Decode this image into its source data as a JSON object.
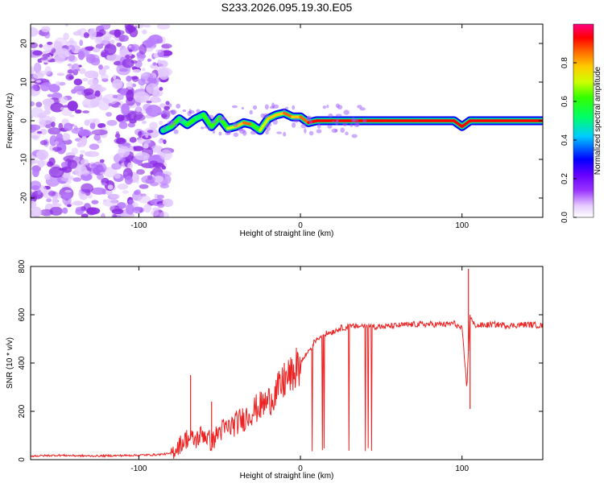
{
  "title": "S233.2026.095.19.30.E05",
  "chart_data": [
    {
      "type": "heatmap",
      "xlabel": "Height of straight line (km)",
      "ylabel": "Frequency (Hz)",
      "xlim": [
        -167,
        150
      ],
      "ylim": [
        -25,
        25
      ],
      "xticks": [
        -100,
        0,
        100
      ],
      "yticks": [
        -20,
        -10,
        0,
        10,
        20
      ],
      "colorbar": {
        "label": "Normalized spectral amplitude",
        "range": [
          0,
          1
        ],
        "ticks": [
          "0.0",
          "0.2",
          "0.4",
          "0.6",
          "0.8"
        ],
        "colors": [
          "#e6ccff",
          "#9933ff",
          "#6600ff",
          "#0000ff",
          "#00ccff",
          "#00ff66",
          "#33ff00",
          "#ccff00",
          "#ffcc00",
          "#ff6600",
          "#ff0000",
          "#ff0080"
        ]
      },
      "noise_region_x": [
        -167,
        -82
      ],
      "ridge": {
        "x": [
          -85,
          -80,
          -75,
          -70,
          -65,
          -60,
          -55,
          -50,
          -45,
          -40,
          -35,
          -30,
          -25,
          -20,
          -15,
          -10,
          -5,
          0,
          5,
          10,
          20,
          30,
          40,
          50,
          60,
          70,
          80,
          90,
          95,
          100,
          105,
          120,
          150
        ],
        "freq": [
          -2.5,
          -1.5,
          0.5,
          -1.0,
          0.5,
          1.5,
          -1.5,
          0.8,
          -2.0,
          -1.5,
          -0.5,
          -1.0,
          -2.5,
          0.5,
          1.5,
          2.0,
          1.0,
          1.0,
          -0.5,
          0.0,
          0.0,
          0.0,
          0.0,
          0.0,
          0.0,
          0.0,
          0.0,
          0.0,
          0.0,
          -1.5,
          0.0,
          0.0,
          0.0
        ],
        "amplitude": [
          0.4,
          0.45,
          0.5,
          0.45,
          0.5,
          0.45,
          0.5,
          0.55,
          0.55,
          0.6,
          0.7,
          0.8,
          0.5,
          0.6,
          0.7,
          0.75,
          0.8,
          0.75,
          0.8,
          0.9,
          0.95,
          0.95,
          0.95,
          0.95,
          0.95,
          0.95,
          0.95,
          0.95,
          0.95,
          0.9,
          0.95,
          0.95,
          0.95
        ]
      }
    },
    {
      "type": "line",
      "xlabel": "Height of straight line (km)",
      "ylabel": "SNR (10 * v/v)",
      "xlim": [
        -167,
        150
      ],
      "ylim": [
        0,
        800
      ],
      "xticks": [
        -100,
        0,
        100
      ],
      "yticks": [
        0,
        200,
        400,
        600,
        800
      ],
      "color": "#ee2222",
      "x": [
        -167,
        -150,
        -130,
        -110,
        -90,
        -80,
        -75,
        -70,
        -65,
        -60,
        -55,
        -50,
        -45,
        -40,
        -35,
        -30,
        -25,
        -20,
        -15,
        -10,
        -5,
        0,
        5,
        10,
        15,
        20,
        25,
        30,
        40,
        50,
        60,
        70,
        80,
        90,
        95,
        100,
        103,
        105,
        107,
        110,
        120,
        130,
        140,
        150
      ],
      "values": [
        15,
        18,
        15,
        17,
        20,
        25,
        60,
        90,
        80,
        110,
        70,
        120,
        130,
        150,
        170,
        200,
        220,
        240,
        280,
        320,
        360,
        400,
        450,
        500,
        520,
        530,
        545,
        550,
        555,
        550,
        555,
        560,
        560,
        560,
        565,
        540,
        300,
        600,
        560,
        555,
        560,
        555,
        560,
        555
      ],
      "spikes": [
        {
          "x": -68,
          "y": 350
        },
        {
          "x": -55,
          "y": 240
        },
        {
          "x": -10,
          "y": 400
        },
        {
          "x": 104,
          "y": 790
        },
        {
          "x": 105,
          "y": 210
        }
      ],
      "dropouts": {
        "x_from": -5,
        "x_to": 50,
        "low": 30
      }
    }
  ]
}
